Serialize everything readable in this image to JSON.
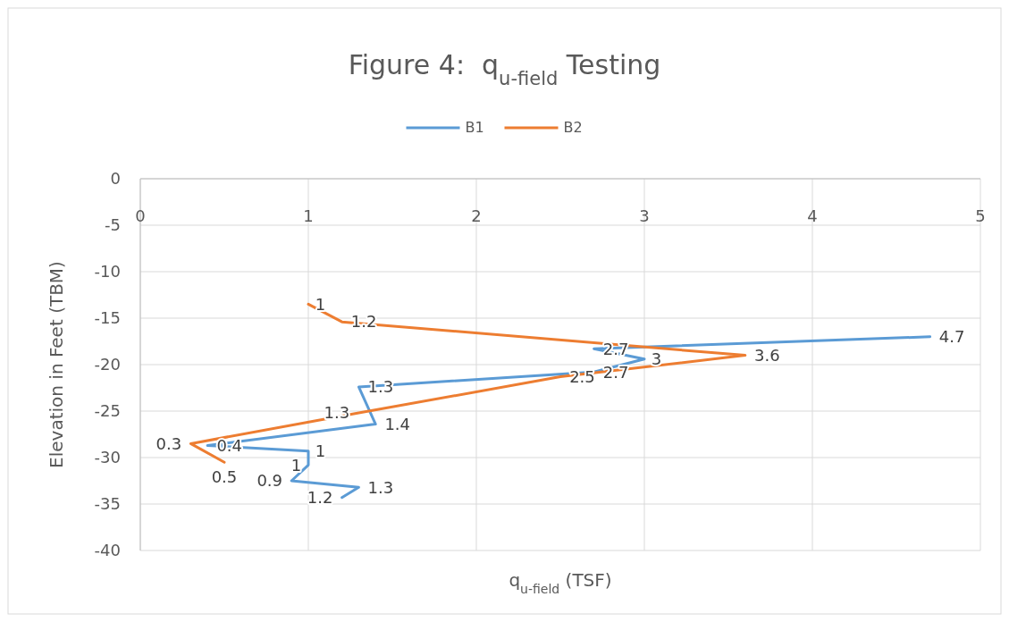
{
  "chart_data": {
    "type": "line",
    "title": "Figure 4:  q$_{u-field}$ Testing",
    "xlabel": "q$_{u-field}$ (TSF)",
    "ylabel": "Elevation in Feet (TBM)",
    "xlim": [
      0,
      5
    ],
    "xticks": [
      0,
      1,
      2,
      3,
      4,
      5
    ],
    "ylim": [
      -40,
      0
    ],
    "yticks": [
      -40,
      -35,
      -30,
      -25,
      -20,
      -15,
      -10,
      -5,
      0
    ],
    "grid": true,
    "legend": "top",
    "marker": "none",
    "series": [
      {
        "name": "B1",
        "color": "#5b9bd5",
        "x": [
          4.7,
          2.7,
          3,
          2.7,
          1.3,
          1.4,
          0.4,
          1,
          1,
          0.9,
          1.3,
          1.2
        ],
        "values": [
          -17,
          -18.3,
          -19.4,
          -20.8,
          -22.4,
          -26.4,
          -28.7,
          -29.3,
          -30.8,
          -32.5,
          -33.2,
          -34.3
        ]
      },
      {
        "name": "B2",
        "color": "#ed7d31",
        "x": [
          1,
          1.2,
          3.6,
          2.5,
          1.3,
          0.3,
          0.5
        ],
        "values": [
          -13.5,
          -15.4,
          -19,
          -21.3,
          -25.2,
          -28.5,
          -30.5
        ]
      }
    ],
    "annotations": [
      {
        "text": "4.7",
        "x": 4.7,
        "y": -17
      },
      {
        "text": "2.7",
        "x": 2.7,
        "y": -18.3
      },
      {
        "text": "3",
        "x": 3,
        "y": -19.4
      },
      {
        "text": "2.7",
        "x": 2.7,
        "y": -20.8
      },
      {
        "text": "1.3",
        "x": 1.3,
        "y": -22.4
      },
      {
        "text": "1.4",
        "x": 1.4,
        "y": -26.4
      },
      {
        "text": "0.4",
        "x": 0.4,
        "y": -28.7
      },
      {
        "text": "1",
        "x": 1,
        "y": -29.3
      },
      {
        "text": "1",
        "x": 1,
        "y": -30.8
      },
      {
        "text": "0.9",
        "x": 0.9,
        "y": -32.5
      },
      {
        "text": "1.3",
        "x": 1.3,
        "y": -33.2
      },
      {
        "text": "1.2",
        "x": 1.2,
        "y": -34.3
      },
      {
        "text": "1",
        "x": 1,
        "y": -13.5
      },
      {
        "text": "1.2",
        "x": 1.2,
        "y": -15.4
      },
      {
        "text": "3.6",
        "x": 3.6,
        "y": -19
      },
      {
        "text": "2.5",
        "x": 2.5,
        "y": -21.3
      },
      {
        "text": "1.3",
        "x": 1.3,
        "y": -25.2
      },
      {
        "text": "0.3",
        "x": 0.3,
        "y": -28.5
      },
      {
        "text": "0.5",
        "x": 0.5,
        "y": -30.5
      }
    ]
  }
}
